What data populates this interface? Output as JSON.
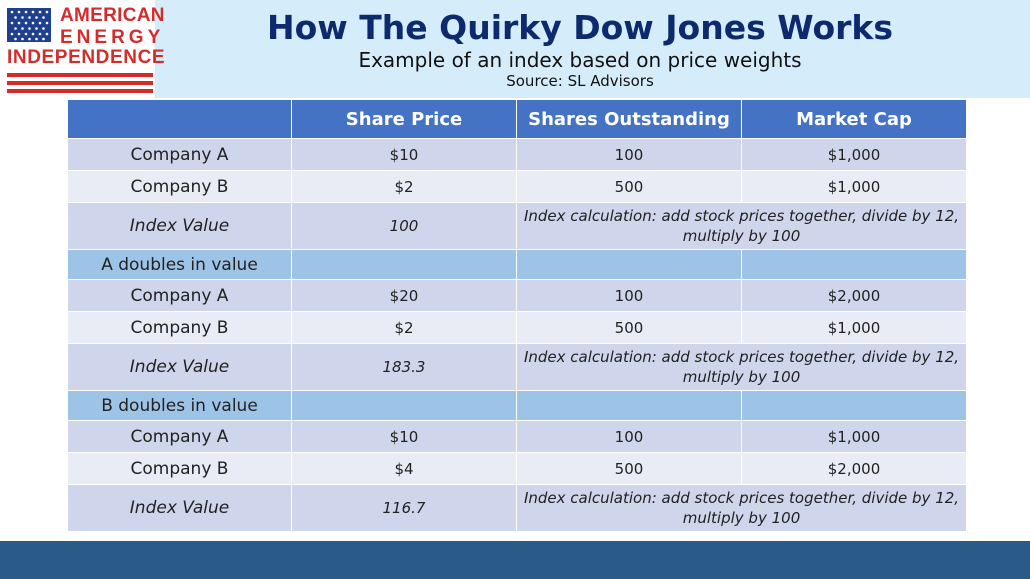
{
  "logo": {
    "line1": "AMERICAN",
    "line2": "ENERGY",
    "line3": "INDEPENDENCE"
  },
  "header": {
    "title": "How The Quirky Dow Jones Works",
    "subtitle": "Example of an index based on price weights",
    "source": "Source: SL Advisors"
  },
  "table": {
    "columns": [
      "",
      "Share Price",
      "Shares Outstanding",
      "Market Cap"
    ],
    "calc_note": "Index calculation: add stock prices together, divide by 12, multiply by 100",
    "block1": {
      "rows": [
        {
          "label": "Company A",
          "price": "$10",
          "shares": "100",
          "cap": "$1,000"
        },
        {
          "label": "Company B",
          "price": "$2",
          "shares": "500",
          "cap": "$1,000"
        }
      ],
      "index_label": "Index Value",
      "index_value": "100"
    },
    "block2": {
      "section": "A doubles in value",
      "rows": [
        {
          "label": "Company A",
          "price": "$20",
          "shares": "100",
          "cap": "$2,000"
        },
        {
          "label": "Company B",
          "price": "$2",
          "shares": "500",
          "cap": "$1,000"
        }
      ],
      "index_label": "Index Value",
      "index_value": "183.3"
    },
    "block3": {
      "section": "B doubles in value",
      "rows": [
        {
          "label": "Company A",
          "price": "$10",
          "shares": "100",
          "cap": "$1,000"
        },
        {
          "label": "Company B",
          "price": "$4",
          "shares": "500",
          "cap": "$2,000"
        }
      ],
      "index_label": "Index Value",
      "index_value": "116.7"
    }
  },
  "colors": {
    "title": "#0d2a6e",
    "header_band": "#d5edfb",
    "table_header": "#4472c4",
    "row_odd": "#cfd5ea",
    "row_even": "#e9ebf5",
    "section_row": "#9dc3e6",
    "footer": "#2a5a87",
    "logo_red": "#d52b2b"
  }
}
